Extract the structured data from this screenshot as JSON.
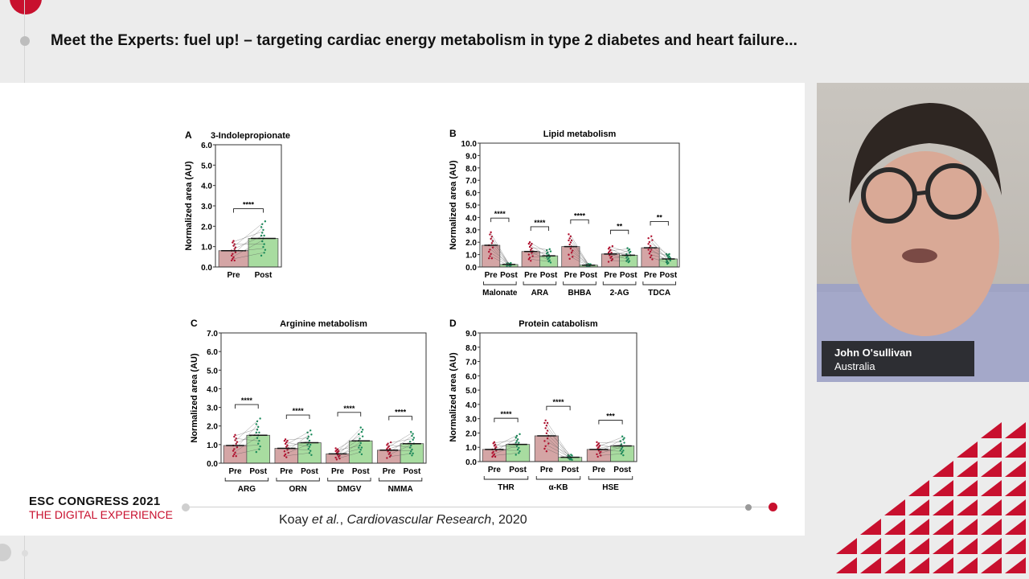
{
  "header": {
    "title": "Meet the Experts: fuel up! – targeting cardiac energy metabolism in type 2 diabetes and heart failure..."
  },
  "slide": {
    "citation_author": "Koay ",
    "citation_etal": "et al.",
    "citation_sep": ", ",
    "citation_journal": "Cardiovascular Research",
    "citation_year": ", 2020"
  },
  "branding": {
    "line1": "ESC CONGRESS 2021",
    "line2": "THE DIGITAL EXPERIENCE",
    "accent": "#c8102e"
  },
  "speaker": {
    "name": "John O'sullivan",
    "country": "Australia"
  },
  "chart_data": [
    {
      "panel": "A",
      "type": "bar",
      "title": "3-Indolepropionate",
      "ylabel": "Normalized area (AU)",
      "ylim": [
        0,
        6
      ],
      "yticks": [
        "0.0",
        "1.0",
        "2.0",
        "3.0",
        "4.0",
        "5.0",
        "6.0"
      ],
      "groups": [
        {
          "name": "",
          "pre": 0.8,
          "post": 1.4,
          "sig": "****"
        }
      ],
      "series": [
        "Pre",
        "Post"
      ]
    },
    {
      "panel": "B",
      "type": "bar",
      "title": "Lipid metabolism",
      "ylabel": "Normalized area (AU)",
      "ylim": [
        0,
        10
      ],
      "yticks": [
        "0.0",
        "1.0",
        "2.0",
        "3.0",
        "4.0",
        "5.0",
        "6.0",
        "7.0",
        "8.0",
        "9.0",
        "10.0"
      ],
      "groups": [
        {
          "name": "Malonate",
          "pre": 1.75,
          "post": 0.2,
          "sig": "****"
        },
        {
          "name": "ARA",
          "pre": 1.25,
          "post": 0.9,
          "sig": "****"
        },
        {
          "name": "BHBA",
          "pre": 1.65,
          "post": 0.15,
          "sig": "****"
        },
        {
          "name": "2-AG",
          "pre": 1.05,
          "post": 0.95,
          "sig": "**"
        },
        {
          "name": "TDCA",
          "pre": 1.55,
          "post": 0.65,
          "sig": "**"
        }
      ],
      "series": [
        "Pre",
        "Post"
      ]
    },
    {
      "panel": "C",
      "type": "bar",
      "title": "Arginine metabolism",
      "ylabel": "Normalized area (AU)",
      "ylim": [
        0,
        7
      ],
      "yticks": [
        "0.0",
        "1.0",
        "2.0",
        "3.0",
        "4.0",
        "5.0",
        "6.0",
        "7.0"
      ],
      "groups": [
        {
          "name": "ARG",
          "pre": 0.95,
          "post": 1.5,
          "sig": "****"
        },
        {
          "name": "ORN",
          "pre": 0.8,
          "post": 1.1,
          "sig": "****"
        },
        {
          "name": "DMGV",
          "pre": 0.5,
          "post": 1.2,
          "sig": "****"
        },
        {
          "name": "NMMA",
          "pre": 0.7,
          "post": 1.05,
          "sig": "****"
        }
      ],
      "series": [
        "Pre",
        "Post"
      ]
    },
    {
      "panel": "D",
      "type": "bar",
      "title": "Protein catabolism",
      "ylabel": "Normalized area (AU)",
      "ylim": [
        0,
        9
      ],
      "yticks": [
        "0.0",
        "1.0",
        "2.0",
        "3.0",
        "4.0",
        "5.0",
        "6.0",
        "7.0",
        "8.0",
        "9.0"
      ],
      "groups": [
        {
          "name": "THR",
          "pre": 0.85,
          "post": 1.2,
          "sig": "****"
        },
        {
          "name": "α-KB",
          "pre": 1.8,
          "post": 0.3,
          "sig": "****"
        },
        {
          "name": "HSE",
          "pre": 0.85,
          "post": 1.1,
          "sig": "***"
        }
      ],
      "series": [
        "Pre",
        "Post"
      ]
    }
  ],
  "colors": {
    "pre": "#d4a5a5",
    "post": "#a8dca0",
    "pre_dot": "#b0102e",
    "post_dot": "#1a8a5a"
  }
}
